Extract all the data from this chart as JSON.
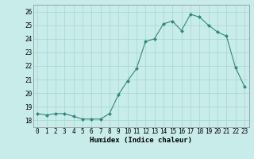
{
  "x": [
    0,
    1,
    2,
    3,
    4,
    5,
    6,
    7,
    8,
    9,
    10,
    11,
    12,
    13,
    14,
    15,
    16,
    17,
    18,
    19,
    20,
    21,
    22,
    23
  ],
  "y": [
    18.5,
    18.4,
    18.5,
    18.5,
    18.3,
    18.1,
    18.1,
    18.1,
    18.5,
    19.9,
    20.9,
    21.8,
    23.8,
    24.0,
    25.1,
    25.3,
    24.6,
    25.8,
    25.6,
    25.0,
    24.5,
    24.2,
    21.9,
    20.5
  ],
  "line_color": "#2e8b7a",
  "marker": "D",
  "marker_size": 2.0,
  "bg_color": "#c8ecea",
  "grid_color": "#aad8d5",
  "xlabel": "Humidex (Indice chaleur)",
  "ylim": [
    17.5,
    26.5
  ],
  "xlim": [
    -0.5,
    23.5
  ],
  "yticks": [
    18,
    19,
    20,
    21,
    22,
    23,
    24,
    25,
    26
  ],
  "xticks": [
    0,
    1,
    2,
    3,
    4,
    5,
    6,
    7,
    8,
    9,
    10,
    11,
    12,
    13,
    14,
    15,
    16,
    17,
    18,
    19,
    20,
    21,
    22,
    23
  ],
  "xlabel_fontsize": 6.5,
  "tick_fontsize": 5.5
}
